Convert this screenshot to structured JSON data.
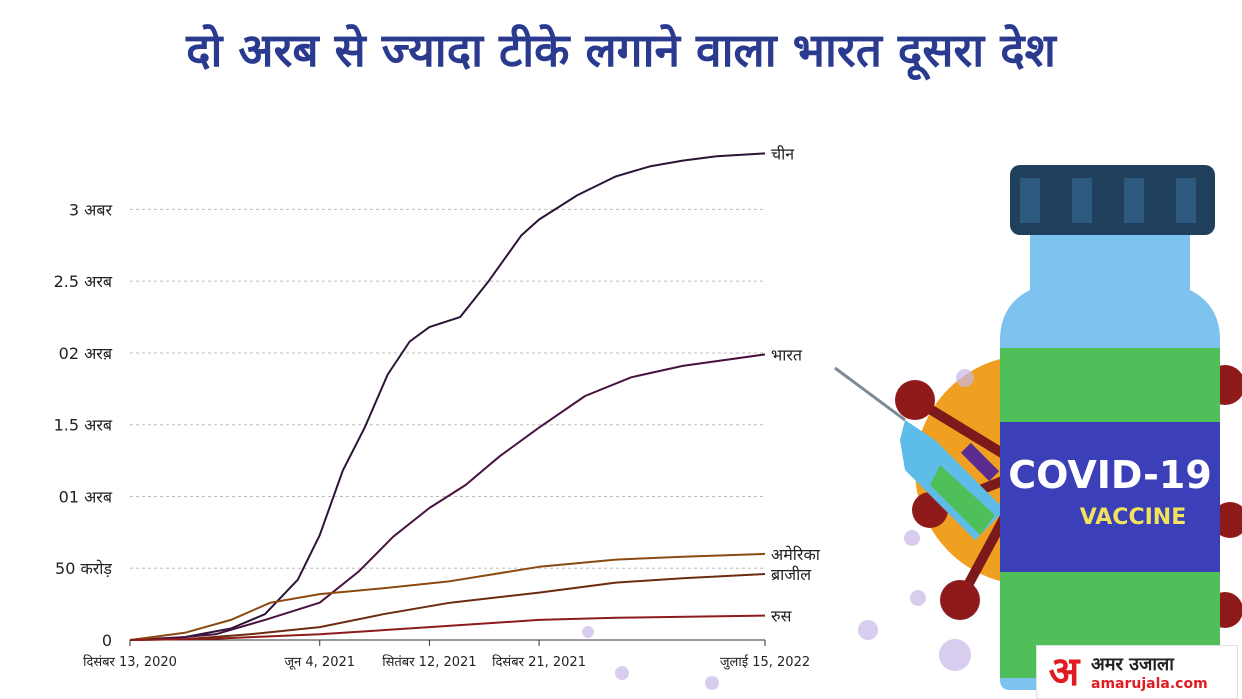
{
  "headline": "दो अरब से ज्यादा टीके लगाने वाला भारत दूसरा देश",
  "chart_data": {
    "type": "line",
    "title": "दो अरब से ज्यादा टीके लगाने वाला भारत दूसरा देश",
    "xlabel": "",
    "ylabel": "",
    "x_tick_labels": [
      "दिसंबर 13, 2020",
      "जून 4, 2021",
      "सितंबर 12, 2021",
      "दिसंबर 21, 2021",
      "जुलाई 15, 2022"
    ],
    "x_tick_dates": [
      "2020-12-13",
      "2021-06-04",
      "2021-09-12",
      "2021-12-21",
      "2022-07-15"
    ],
    "xlim": [
      "2020-12-13",
      "2022-07-15"
    ],
    "y_ticks": [
      {
        "value": 0,
        "label": "0"
      },
      {
        "value": 0.5,
        "label": "50 करोड़"
      },
      {
        "value": 1.0,
        "label": "01 अरब"
      },
      {
        "value": 1.5,
        "label": "1.5 अरब"
      },
      {
        "value": 2.0,
        "label": "02 अरब़"
      },
      {
        "value": 2.5,
        "label": "2.5 अरब"
      },
      {
        "value": 3.0,
        "label": "3 अबर"
      }
    ],
    "ylim": [
      0,
      3.4
    ],
    "y_unit": "अरब",
    "grid": "horizontal dashed",
    "legend": "line-end labels",
    "series": [
      {
        "name": "चीन",
        "color": "#2b1436",
        "x": [
          "2020-12-13",
          "2021-02-01",
          "2021-03-15",
          "2021-04-15",
          "2021-05-15",
          "2021-06-04",
          "2021-06-25",
          "2021-07-15",
          "2021-08-05",
          "2021-08-25",
          "2021-09-12",
          "2021-10-10",
          "2021-11-05",
          "2021-12-05",
          "2021-12-21",
          "2022-01-25",
          "2022-03-01",
          "2022-04-01",
          "2022-05-01",
          "2022-06-01",
          "2022-07-15"
        ],
        "y": [
          0,
          0.02,
          0.08,
          0.18,
          0.42,
          0.73,
          1.18,
          1.48,
          1.85,
          2.08,
          2.18,
          2.25,
          2.5,
          2.82,
          2.93,
          3.1,
          3.23,
          3.3,
          3.34,
          3.37,
          3.39
        ]
      },
      {
        "name": "भारत",
        "color": "#4a1240",
        "x": [
          "2020-12-13",
          "2021-01-16",
          "2021-03-01",
          "2021-04-15",
          "2021-06-04",
          "2021-07-10",
          "2021-08-10",
          "2021-09-12",
          "2021-10-15",
          "2021-11-15",
          "2021-12-21",
          "2022-02-01",
          "2022-03-15",
          "2022-05-01",
          "2022-07-15"
        ],
        "y": [
          0,
          0.01,
          0.04,
          0.14,
          0.26,
          0.48,
          0.72,
          0.92,
          1.08,
          1.28,
          1.48,
          1.7,
          1.83,
          1.91,
          1.99
        ]
      },
      {
        "name": "अमेरिका",
        "color": "#8a4a10",
        "x": [
          "2020-12-13",
          "2021-02-01",
          "2021-03-15",
          "2021-04-20",
          "2021-06-04",
          "2021-08-01",
          "2021-10-01",
          "2021-12-21",
          "2022-03-01",
          "2022-05-01",
          "2022-07-15"
        ],
        "y": [
          0,
          0.05,
          0.14,
          0.26,
          0.32,
          0.36,
          0.41,
          0.51,
          0.56,
          0.58,
          0.6
        ]
      },
      {
        "name": "ब्राजील",
        "color": "#6b2b0e",
        "x": [
          "2020-12-13",
          "2021-02-01",
          "2021-04-01",
          "2021-06-04",
          "2021-08-01",
          "2021-10-01",
          "2021-12-21",
          "2022-03-01",
          "2022-05-01",
          "2022-07-15"
        ],
        "y": [
          0,
          0.005,
          0.04,
          0.09,
          0.18,
          0.26,
          0.33,
          0.4,
          0.43,
          0.46
        ]
      },
      {
        "name": "रुस",
        "color": "#8e1a1a",
        "x": [
          "2020-12-13",
          "2021-03-01",
          "2021-06-04",
          "2021-09-12",
          "2021-12-21",
          "2022-03-01",
          "2022-07-15"
        ],
        "y": [
          0,
          0.01,
          0.04,
          0.09,
          0.14,
          0.155,
          0.17
        ]
      }
    ]
  },
  "logo": {
    "mark": "अ",
    "title": "अमर उजाला",
    "url": "amarujala.com"
  },
  "illustration": {
    "vial_label_main": "COVID-19",
    "vial_label_sub": "VACCINE"
  },
  "colors": {
    "headline": "#2a3a8f",
    "grid": "#bdbdbd",
    "vial_liquid": "#4fbf5a",
    "vial_glass": "#7ec3ef",
    "vial_cap": "#1f3f5c",
    "label_band": "#3b3fb8",
    "virus": "#f0a020",
    "virus_spikes": "#7a1a1a"
  }
}
